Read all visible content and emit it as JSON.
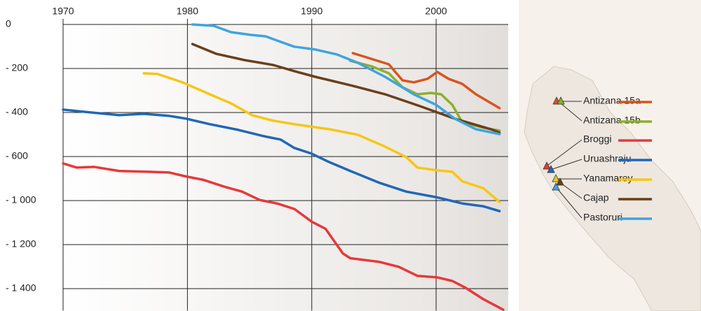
{
  "chart_data": {
    "type": "line",
    "xlim": [
      1970,
      2005.8
    ],
    "xticks": [
      1970,
      1980,
      1990,
      2000
    ],
    "ylim": [
      -1500,
      0
    ],
    "yticks": [
      0,
      {
        "value": -200,
        "label": "- 200"
      },
      {
        "value": -400,
        "label": "- 400"
      },
      {
        "value": -600,
        "label": "- 600"
      },
      {
        "value": -1000,
        "label": "- 1 000"
      },
      {
        "value": -1200,
        "label": "- 1 200"
      },
      {
        "value": -1400,
        "label": "- 1 400"
      }
    ],
    "grid": true,
    "series": [
      {
        "name": "Antizana 15a",
        "color": "#d9541e",
        "x": [
          1993.3,
          1996.2,
          1997.3,
          1998.2,
          1999.3,
          2000.1,
          2001,
          2002.1,
          2003.2,
          2005.1
        ],
        "values": [
          -130,
          -181,
          -254,
          -263,
          -247,
          -216,
          -247,
          -270,
          -317,
          -380
        ]
      },
      {
        "name": "Antizana 15b",
        "color": "#8cb02d",
        "x": [
          1993.1,
          1994.8,
          1996.2,
          1997.3,
          1998.5,
          1999.6,
          2000.4,
          2001.3,
          2002.1,
          2003.8,
          2005.1
        ],
        "values": [
          -165,
          -190,
          -222,
          -285,
          -317,
          -311,
          -317,
          -365,
          -444,
          -469,
          -482
        ]
      },
      {
        "name": "Broggi",
        "color": "#e8383a",
        "x": [
          1970,
          1971.1,
          1972.5,
          1974.5,
          1976.8,
          1978.5,
          1979.9,
          1981.3,
          1983,
          1984.4,
          1985.8,
          1987.2,
          1988.6,
          1990,
          1991.1,
          1991.7,
          1992.5,
          1993.1,
          1995.4,
          1997,
          1998.5,
          2000.1,
          2001.3,
          2002.4,
          2003.8,
          2005.4
        ],
        "values": [
          -662,
          -700,
          -694,
          -731,
          -738,
          -744,
          -781,
          -812,
          -875,
          -919,
          -994,
          -1013,
          -1038,
          -1096,
          -1128,
          -1176,
          -1240,
          -1262,
          -1278,
          -1301,
          -1342,
          -1349,
          -1365,
          -1397,
          -1448,
          -1496
        ]
      },
      {
        "name": "Uruashraju",
        "color": "#2067b8",
        "x": [
          1970,
          1972.3,
          1974.5,
          1976.5,
          1978.5,
          1979.9,
          1981.8,
          1984.1,
          1986.1,
          1987.5,
          1988.6,
          1990,
          1991.4,
          1993.1,
          1995.4,
          1997.6,
          2000,
          2002.1,
          2003.8,
          2005.1
        ],
        "values": [
          -387,
          -400,
          -412,
          -406,
          -415,
          -428,
          -453,
          -479,
          -507,
          -523,
          -561,
          -587,
          -650,
          -731,
          -837,
          -919,
          -969,
          -1013,
          -1026,
          -1048
        ]
      },
      {
        "name": "Yanamarey",
        "color": "#f7c614",
        "x": [
          1976.5,
          1977.6,
          1979.6,
          1981.8,
          1983.5,
          1985.2,
          1986.9,
          1988.6,
          1991.4,
          1993.7,
          1995.9,
          1997.6,
          1998.5,
          2000.1,
          2001.3,
          2002.1,
          2003.8,
          2005.1
        ],
        "values": [
          -222,
          -225,
          -263,
          -317,
          -358,
          -412,
          -437,
          -453,
          -476,
          -501,
          -555,
          -606,
          -700,
          -725,
          -738,
          -825,
          -888,
          -1006
        ]
      },
      {
        "name": "Cajap",
        "color": "#6b3f1a",
        "x": [
          1980.4,
          1982.3,
          1984.6,
          1986.9,
          1988.6,
          1990.3,
          1993.1,
          1995.9,
          1998.7,
          2001.5,
          2004.4,
          2005.1
        ],
        "values": [
          -89,
          -133,
          -162,
          -184,
          -212,
          -238,
          -276,
          -317,
          -371,
          -428,
          -476,
          -491
        ]
      },
      {
        "name": "Pastoruri",
        "color": "#3ea4e0",
        "x": [
          1980.4,
          1982.1,
          1983.5,
          1985.2,
          1986.3,
          1987.5,
          1988.6,
          1990.3,
          1992,
          1993.7,
          1995.9,
          1998.2,
          2000,
          2001.5,
          2003.2,
          2005.1
        ],
        "values": [
          0,
          -6,
          -35,
          -48,
          -54,
          -79,
          -101,
          -114,
          -136,
          -174,
          -238,
          -317,
          -365,
          -428,
          -476,
          -498
        ]
      }
    ]
  }
}
